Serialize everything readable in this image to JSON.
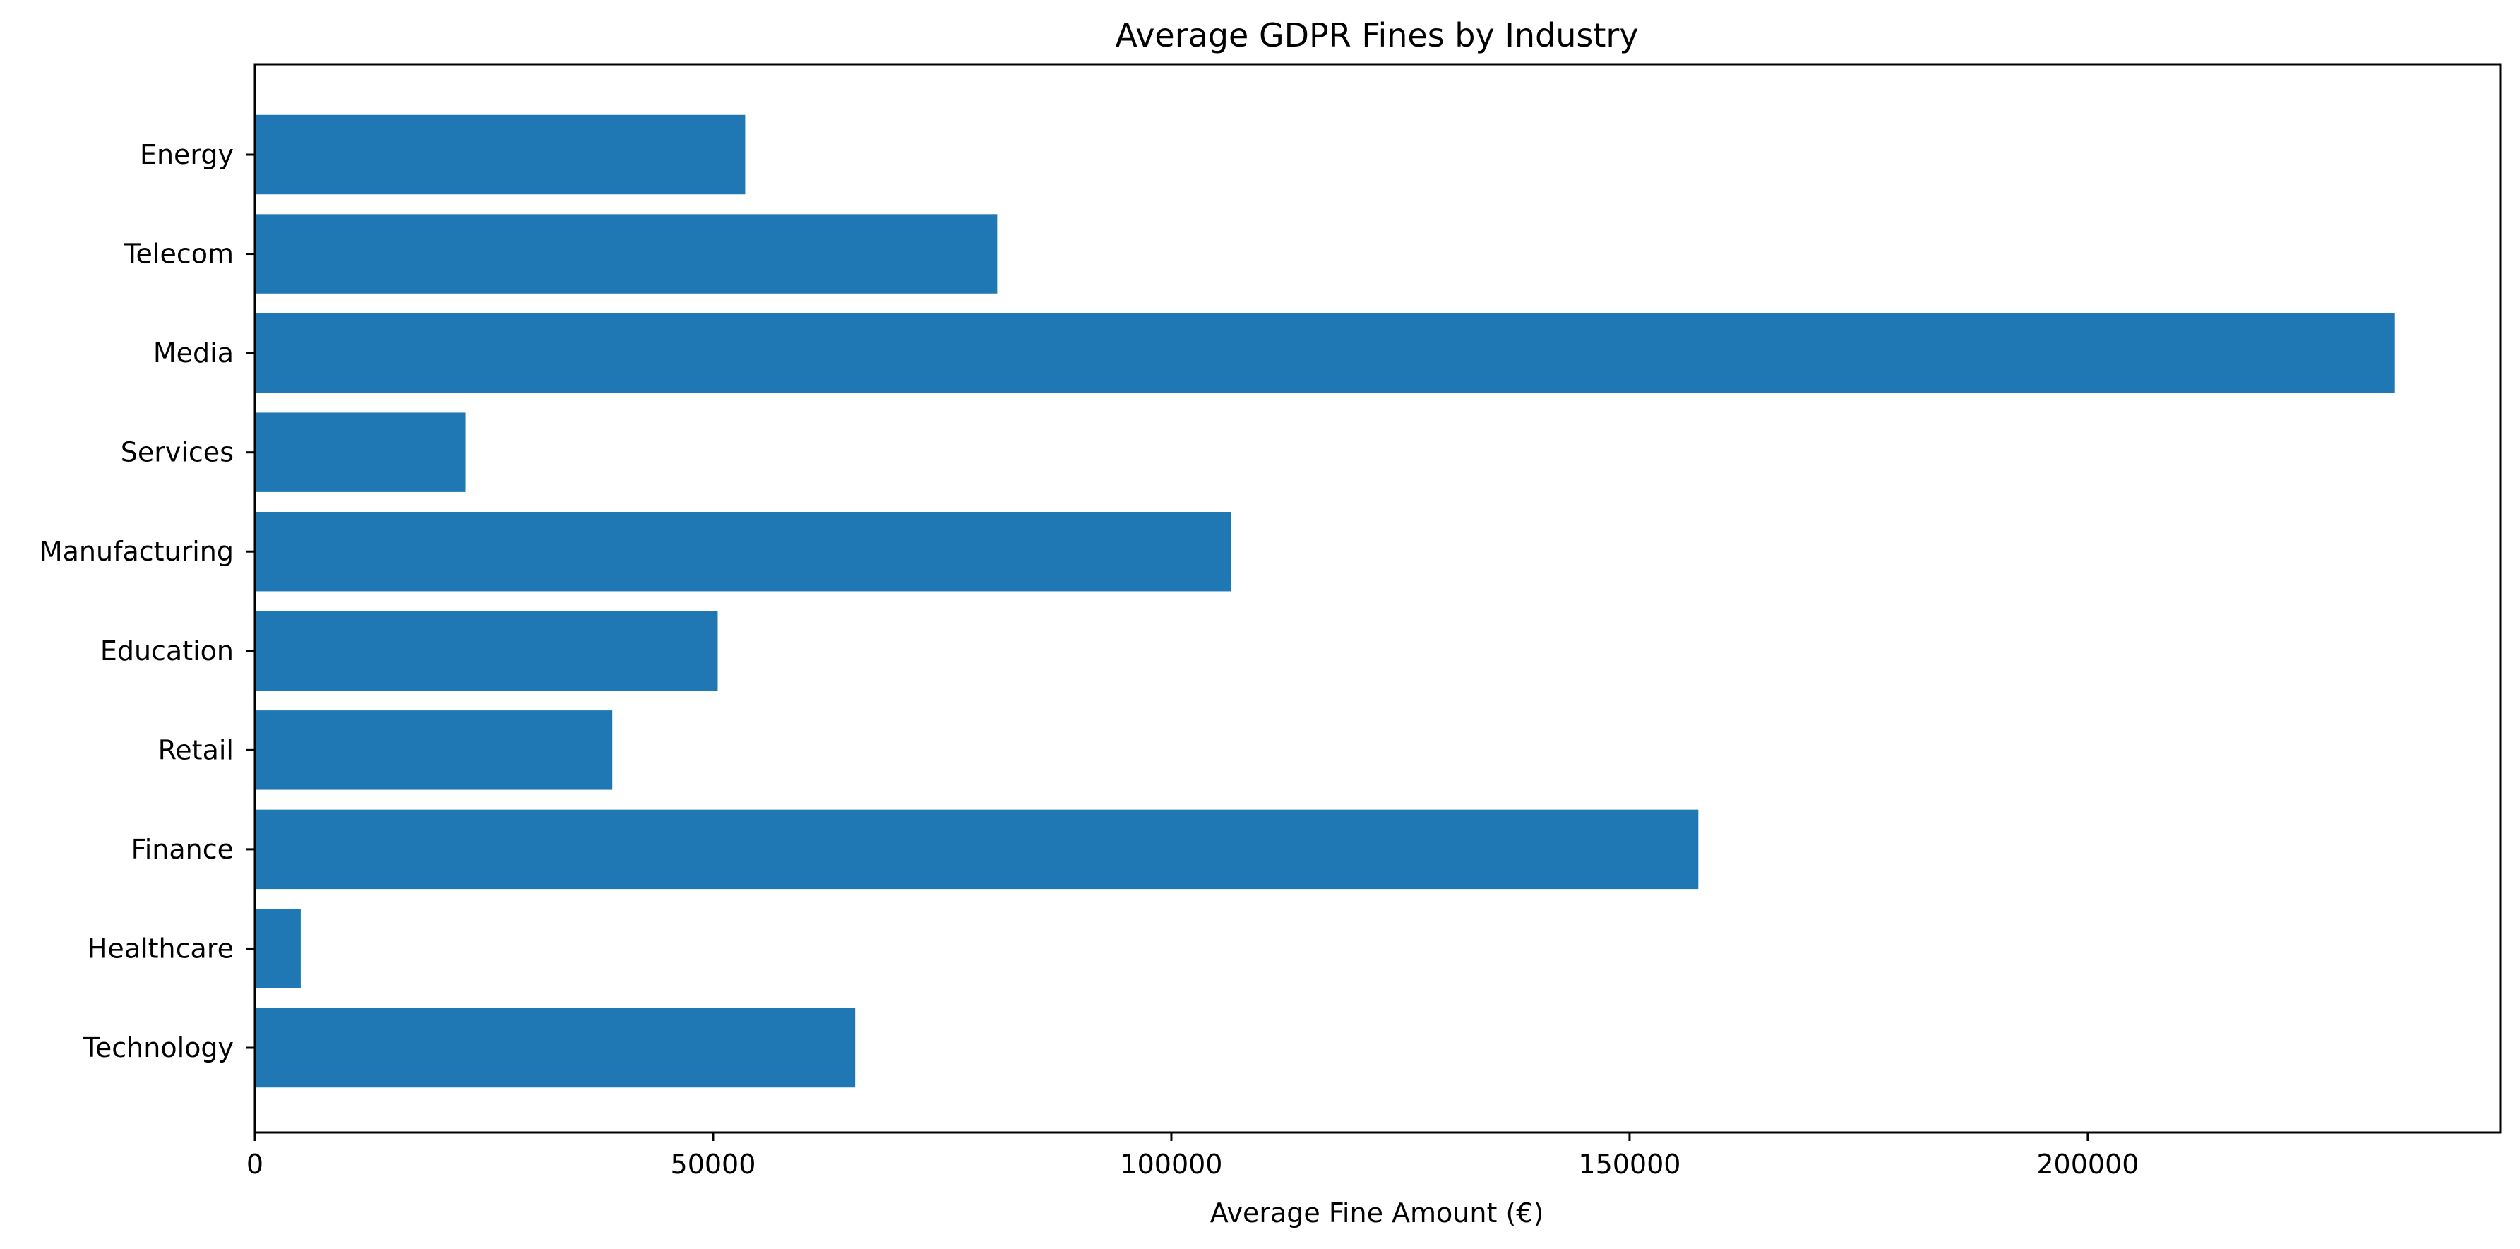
{
  "chart_data": {
    "type": "bar",
    "orientation": "horizontal",
    "title": "Average GDPR Fines by Industry",
    "xlabel": "Average Fine Amount (€)",
    "ylabel": "",
    "categories": [
      "Technology",
      "Healthcare",
      "Finance",
      "Retail",
      "Education",
      "Manufacturing",
      "Services",
      "Media",
      "Telecom",
      "Energy"
    ],
    "values": [
      65500,
      5000,
      157500,
      39000,
      50500,
      106500,
      23000,
      233500,
      81000,
      53500
    ],
    "xlim": [
      0,
      245000
    ],
    "xticks": [
      "0",
      "50000",
      "100000",
      "150000",
      "200000"
    ],
    "grid": false,
    "legend": "none",
    "bar_color": "#1f77b4"
  }
}
